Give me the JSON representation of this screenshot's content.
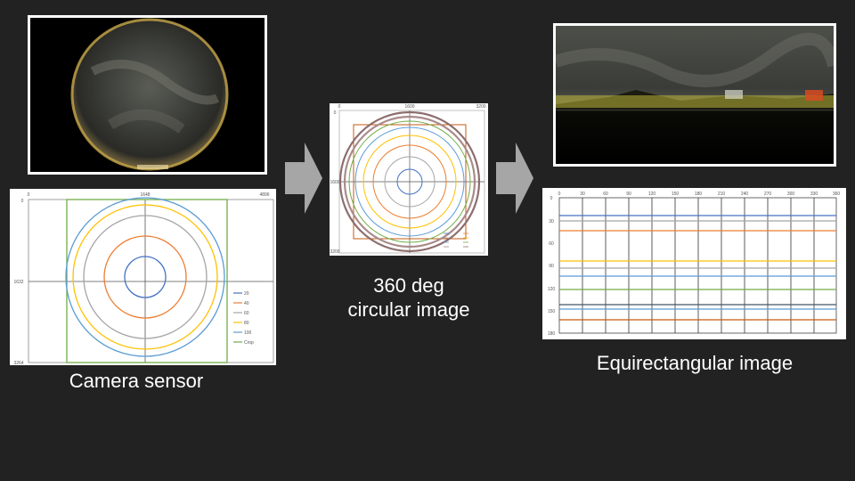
{
  "captions": {
    "sensor": "Camera sensor",
    "circular_line1": "360 deg",
    "circular_line2": "circular image",
    "equirect": "Equirectangular image"
  },
  "sensor_chart": {
    "x_ticks": [
      "0",
      "1648",
      "4896"
    ],
    "y_ticks": [
      "0",
      "1632",
      "3264"
    ],
    "legend": [
      {
        "label": "20",
        "color": "#4472c4"
      },
      {
        "label": "40",
        "color": "#ed7d31"
      },
      {
        "label": "60",
        "color": "#a5a5a5"
      },
      {
        "label": "80",
        "color": "#ffc000"
      },
      {
        "label": "100",
        "color": "#5b9bd5"
      },
      {
        "label": "Crop",
        "color": "#70ad47"
      }
    ]
  },
  "circular_chart": {
    "x_ticks": [
      "0",
      "1600",
      "3200"
    ],
    "y_ticks": [
      "0",
      "1600",
      "3200"
    ]
  },
  "equirect_chart": {
    "x_ticks": [
      "0",
      "30",
      "60",
      "90",
      "120",
      "150",
      "180",
      "210",
      "240",
      "270",
      "300",
      "330",
      "360"
    ],
    "y_ticks": [
      "0",
      "30",
      "60",
      "90",
      "120",
      "150",
      "180"
    ]
  },
  "colors": {
    "background": "#222222",
    "arrow": "#a6a6a6",
    "frame": "#ffffff"
  }
}
